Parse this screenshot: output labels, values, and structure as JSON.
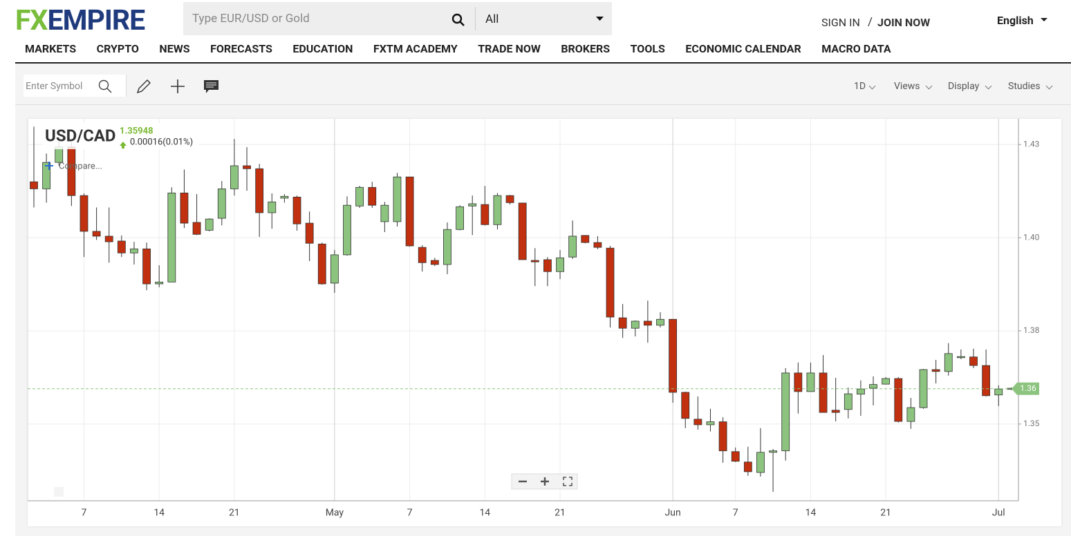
{
  "header": {
    "logo_a": "FX",
    "logo_b": "EMPIRE",
    "search_placeholder": "Type EUR/USD or Gold",
    "filter": "All",
    "sign_in": "SIGN IN",
    "separator": "/",
    "join": "JOIN NOW",
    "language": "English"
  },
  "nav": [
    "MARKETS",
    "CRYPTO",
    "NEWS",
    "FORECASTS",
    "EDUCATION",
    "FXTM ACADEMY",
    "TRADE NOW",
    "BROKERS",
    "TOOLS",
    "ECONOMIC CALENDAR",
    "MACRO DATA"
  ],
  "toolbar": {
    "symbol_placeholder": "Enter Symbol",
    "menus": [
      "1D",
      "Views",
      "Display",
      "Studies"
    ]
  },
  "chart_data": {
    "type": "candlestick",
    "title": "USD/CAD",
    "change": "0.00016(0.01%)",
    "compare": "Compare...",
    "price_line": {
      "value": 1.35948,
      "label": "1.36"
    },
    "up_color": "#8cc47f",
    "down_color": "#c1300f",
    "ylim": [
      1.3294,
      1.4319
    ],
    "yticks": [
      {
        "value": 1.35,
        "label": "1.35"
      },
      {
        "value": 1.375,
        "label": "1.38"
      },
      {
        "value": 1.4,
        "label": "1.40"
      },
      {
        "value": 1.425,
        "label": "1.43"
      }
    ],
    "grid": true,
    "categories": [
      null,
      null,
      null,
      null,
      "7",
      null,
      null,
      null,
      null,
      null,
      "14",
      null,
      null,
      null,
      null,
      null,
      "21",
      null,
      null,
      null,
      null,
      null,
      null,
      null,
      "May",
      null,
      null,
      null,
      null,
      null,
      "7",
      null,
      null,
      null,
      null,
      null,
      "14",
      null,
      null,
      null,
      null,
      null,
      "21",
      null,
      null,
      null,
      null,
      null,
      null,
      null,
      null,
      "Jun",
      null,
      null,
      null,
      null,
      "7",
      null,
      null,
      null,
      null,
      null,
      "14",
      null,
      null,
      null,
      null,
      null,
      "21",
      null,
      null,
      null,
      null,
      null,
      null,
      null,
      null,
      "Jul",
      null
    ],
    "open": [
      1.415,
      1.4131,
      1.4202,
      1.4244,
      1.4113,
      1.4017,
      1.4004,
      1.3991,
      1.3959,
      1.397,
      1.3876,
      1.3881,
      1.412,
      1.4041,
      1.402,
      1.4052,
      1.4131,
      1.4193,
      1.4185,
      1.4067,
      1.4106,
      1.4109,
      1.4039,
      1.3983,
      1.3878,
      1.3954,
      1.4085,
      1.4135,
      1.4043,
      1.4043,
      1.4163,
      1.3974,
      1.3939,
      1.3928,
      1.4022,
      1.4085,
      1.4089,
      1.4035,
      1.4113,
      1.4093,
      1.3939,
      1.3941,
      1.3909,
      1.3948,
      1.4006,
      1.3987,
      1.3972,
      1.3785,
      1.3757,
      1.3776,
      1.3765,
      1.3781,
      1.3585,
      1.3513,
      1.3498,
      1.3506,
      1.3426,
      1.3398,
      1.337,
      1.3424,
      1.3428,
      1.3637,
      1.3587,
      1.3637,
      1.3537,
      1.3539,
      1.358,
      1.3596,
      1.3607,
      1.3622,
      1.3507,
      1.3544,
      1.3646,
      1.3641,
      1.3678,
      1.368,
      1.3657,
      1.3578,
      1.3593
    ],
    "high": [
      1.4298,
      1.4226,
      1.4267,
      1.4257,
      1.4119,
      1.4081,
      1.4081,
      1.4006,
      1.3989,
      1.3987,
      1.3926,
      1.4135,
      1.4183,
      1.4117,
      1.4052,
      1.4152,
      1.4265,
      1.4243,
      1.4198,
      1.4119,
      1.4117,
      1.4113,
      1.407,
      1.3987,
      1.3967,
      1.4111,
      1.4139,
      1.415,
      1.4096,
      1.4174,
      1.4163,
      1.398,
      1.3946,
      1.4041,
      1.4087,
      1.4113,
      1.4139,
      1.412,
      1.4115,
      1.4094,
      1.3972,
      1.3948,
      1.3967,
      1.4046,
      1.4007,
      1.4004,
      1.3978,
      1.3822,
      1.3778,
      1.3831,
      1.38,
      1.3781,
      1.3587,
      1.3574,
      1.3541,
      1.3518,
      1.3437,
      1.3439,
      1.3489,
      1.3433,
      1.365,
      1.3665,
      1.3665,
      1.3685,
      1.3624,
      1.3598,
      1.3617,
      1.3628,
      1.3626,
      1.3626,
      1.357,
      1.3648,
      1.3672,
      1.3717,
      1.37,
      1.3702,
      1.37,
      1.3604,
      1.3598
    ],
    "low": [
      1.4081,
      1.4094,
      1.4193,
      1.4085,
      1.3948,
      1.3994,
      1.3933,
      1.3948,
      1.3928,
      1.3859,
      1.3867,
      1.3881,
      1.4026,
      1.4007,
      1.4017,
      1.4033,
      1.4113,
      1.4126,
      1.4002,
      1.4024,
      1.4094,
      1.4019,
      1.3937,
      1.3874,
      1.3852,
      1.3952,
      1.408,
      1.408,
      1.4015,
      1.403,
      1.3976,
      1.3909,
      1.3924,
      1.3902,
      1.402,
      1.4007,
      1.4033,
      1.4022,
      1.4089,
      1.3941,
      1.387,
      1.387,
      1.3889,
      1.3943,
      1.3985,
      1.3969,
      1.3759,
      1.3731,
      1.3735,
      1.3718,
      1.3759,
      1.3557,
      1.3489,
      1.3485,
      1.348,
      1.3396,
      1.3398,
      1.3361,
      1.3359,
      1.3318,
      1.3402,
      1.3528,
      1.3587,
      1.3531,
      1.3507,
      1.3515,
      1.3522,
      1.355,
      1.3606,
      1.3504,
      1.3487,
      1.3541,
      1.3609,
      1.363,
      1.3674,
      1.365,
      1.3574,
      1.3548,
      1.3591
    ],
    "close": [
      1.4131,
      1.4202,
      1.4244,
      1.4113,
      1.4017,
      1.4004,
      1.3989,
      1.3959,
      1.397,
      1.3876,
      1.3881,
      1.412,
      1.4039,
      1.4009,
      1.405,
      1.4131,
      1.4193,
      1.4185,
      1.4067,
      1.4096,
      1.4111,
      1.4037,
      1.3985,
      1.3876,
      1.3954,
      1.4087,
      1.4135,
      1.4087,
      1.4087,
      1.4163,
      1.3978,
      1.3933,
      1.3928,
      1.4022,
      1.4083,
      1.4091,
      1.4035,
      1.4113,
      1.4094,
      1.3941,
      1.3935,
      1.3909,
      1.3946,
      1.4004,
      1.3987,
      1.3974,
      1.3787,
      1.3757,
      1.3776,
      1.3765,
      1.3781,
      1.3585,
      1.3515,
      1.3498,
      1.3506,
      1.3428,
      1.34,
      1.3372,
      1.3424,
      1.3428,
      1.3637,
      1.3587,
      1.3637,
      1.3531,
      1.3531,
      1.3581,
      1.3594,
      1.3606,
      1.3622,
      1.3507,
      1.3544,
      1.3646,
      1.3641,
      1.3689,
      1.3681,
      1.3657,
      1.3576,
      1.3594,
      1.3596
    ]
  }
}
